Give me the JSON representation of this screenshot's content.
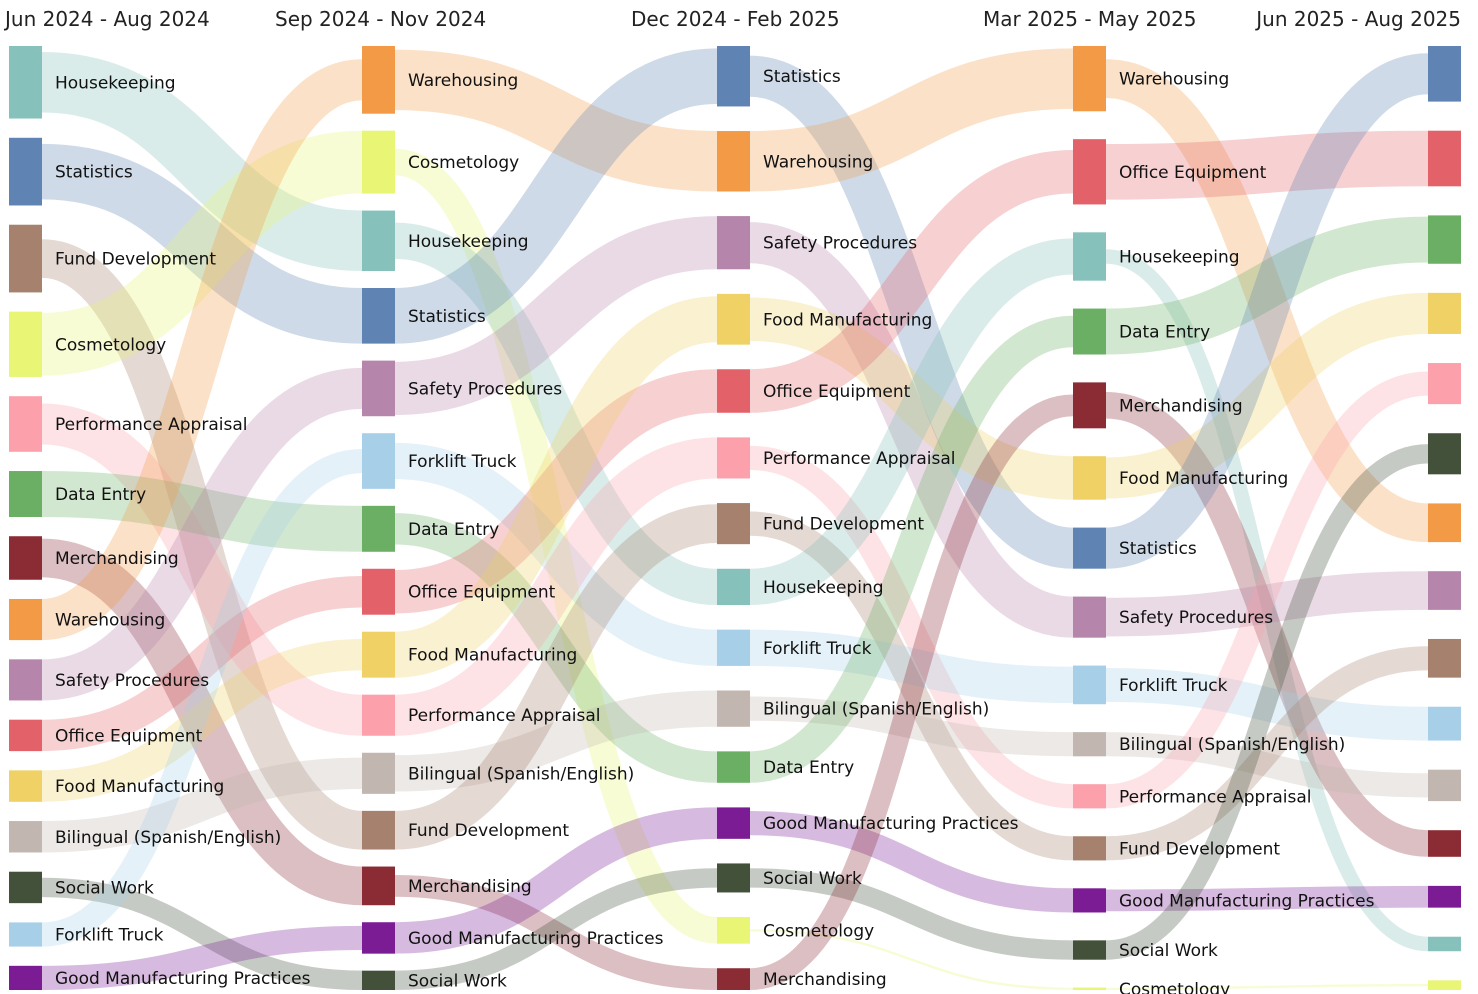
{
  "chart_data": {
    "type": "sankey",
    "columns": [
      "Jun 2024 - Aug 2024",
      "Sep 2024 - Nov 2024",
      "Dec 2024 - Feb 2025",
      "Mar 2025 - May 2025",
      "Jun 2025 - Aug 2025"
    ],
    "colors": {
      "Housekeeping": "#86c1bb",
      "Statistics": "#5f84b3",
      "Fund Development": "#a6826e",
      "Cosmetology": "#e8f575",
      "Performance Appraisal": "#fca1ab",
      "Data Entry": "#6aaf63",
      "Merchandising": "#8b2c34",
      "Warehousing": "#f29a46",
      "Safety Procedures": "#b685ab",
      "Office Equipment": "#e3626a",
      "Food Manufacturing": "#efd165",
      "Bilingual (Spanish/English)": "#c1b6b0",
      "Social Work": "#43503a",
      "Forklift Truck": "#a7cfe8",
      "Good Manufacturing Practices": "#7c1c94"
    },
    "stages": [
      {
        "order": [
          "Housekeeping",
          "Statistics",
          "Fund Development",
          "Cosmetology",
          "Performance Appraisal",
          "Data Entry",
          "Merchandising",
          "Warehousing",
          "Safety Procedures",
          "Office Equipment",
          "Food Manufacturing",
          "Bilingual (Spanish/English)",
          "Social Work",
          "Forklift Truck",
          "Good Manufacturing Practices"
        ],
        "values": {
          "Housekeeping": 60,
          "Statistics": 56,
          "Fund Development": 56,
          "Cosmetology": 54,
          "Performance Appraisal": 46,
          "Data Entry": 38,
          "Merchandising": 36,
          "Warehousing": 34,
          "Safety Procedures": 34,
          "Office Equipment": 26,
          "Food Manufacturing": 26,
          "Bilingual (Spanish/English)": 26,
          "Social Work": 26,
          "Forklift Truck": 20,
          "Good Manufacturing Practices": 20
        }
      },
      {
        "order": [
          "Warehousing",
          "Cosmetology",
          "Housekeeping",
          "Statistics",
          "Safety Procedures",
          "Forklift Truck",
          "Data Entry",
          "Office Equipment",
          "Food Manufacturing",
          "Performance Appraisal",
          "Bilingual (Spanish/English)",
          "Fund Development",
          "Merchandising",
          "Good Manufacturing Practices",
          "Social Work"
        ],
        "values": {
          "Warehousing": 56,
          "Cosmetology": 52,
          "Housekeeping": 50,
          "Statistics": 46,
          "Safety Procedures": 46,
          "Forklift Truck": 46,
          "Data Entry": 38,
          "Office Equipment": 38,
          "Food Manufacturing": 38,
          "Performance Appraisal": 34,
          "Bilingual (Spanish/English)": 34,
          "Fund Development": 32,
          "Merchandising": 32,
          "Good Manufacturing Practices": 26,
          "Social Work": 16
        }
      },
      {
        "order": [
          "Statistics",
          "Warehousing",
          "Safety Procedures",
          "Food Manufacturing",
          "Office Equipment",
          "Performance Appraisal",
          "Fund Development",
          "Housekeeping",
          "Forklift Truck",
          "Bilingual (Spanish/English)",
          "Data Entry",
          "Good Manufacturing Practices",
          "Social Work",
          "Cosmetology",
          "Merchandising"
        ],
        "values": {
          "Statistics": 50,
          "Warehousing": 50,
          "Safety Procedures": 44,
          "Food Manufacturing": 42,
          "Office Equipment": 36,
          "Performance Appraisal": 34,
          "Fund Development": 34,
          "Housekeeping": 30,
          "Forklift Truck": 30,
          "Bilingual (Spanish/English)": 30,
          "Data Entry": 26,
          "Good Manufacturing Practices": 26,
          "Social Work": 24,
          "Cosmetology": 22,
          "Merchandising": 18
        }
      },
      {
        "order": [
          "Warehousing",
          "Office Equipment",
          "Housekeeping",
          "Data Entry",
          "Merchandising",
          "Food Manufacturing",
          "Statistics",
          "Safety Procedures",
          "Forklift Truck",
          "Bilingual (Spanish/English)",
          "Performance Appraisal",
          "Fund Development",
          "Good Manufacturing Practices",
          "Social Work",
          "Cosmetology"
        ],
        "values": {
          "Warehousing": 54,
          "Office Equipment": 54,
          "Housekeeping": 40,
          "Data Entry": 38,
          "Merchandising": 38,
          "Food Manufacturing": 36,
          "Statistics": 34,
          "Safety Procedures": 34,
          "Forklift Truck": 32,
          "Bilingual (Spanish/English)": 20,
          "Performance Appraisal": 20,
          "Fund Development": 20,
          "Good Manufacturing Practices": 20,
          "Social Work": 16,
          "Cosmetology": 2
        }
      },
      {
        "order": [
          "Statistics",
          "Office Equipment",
          "Data Entry",
          "Food Manufacturing",
          "Performance Appraisal",
          "Social Work",
          "Warehousing",
          "Safety Procedures",
          "Fund Development",
          "Forklift Truck",
          "Bilingual (Spanish/English)",
          "Merchandising",
          "Good Manufacturing Practices",
          "Housekeeping",
          "Cosmetology"
        ],
        "values": {
          "Statistics": 46,
          "Office Equipment": 46,
          "Data Entry": 40,
          "Food Manufacturing": 34,
          "Performance Appraisal": 34,
          "Social Work": 34,
          "Warehousing": 32,
          "Safety Procedures": 32,
          "Fund Development": 32,
          "Forklift Truck": 28,
          "Bilingual (Spanish/English)": 26,
          "Merchandising": 22,
          "Good Manufacturing Practices": 18,
          "Housekeeping": 12,
          "Cosmetology": 8
        }
      }
    ],
    "show_labels": [
      true,
      true,
      true,
      true,
      false
    ]
  }
}
